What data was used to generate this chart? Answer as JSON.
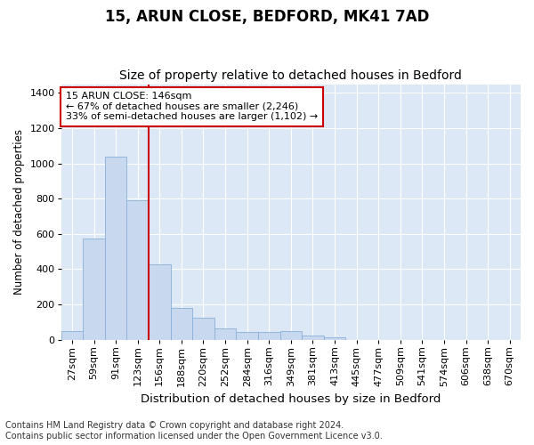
{
  "title1": "15, ARUN CLOSE, BEDFORD, MK41 7AD",
  "title2": "Size of property relative to detached houses in Bedford",
  "xlabel": "Distribution of detached houses by size in Bedford",
  "ylabel": "Number of detached properties",
  "categories": [
    "27sqm",
    "59sqm",
    "91sqm",
    "123sqm",
    "156sqm",
    "188sqm",
    "220sqm",
    "252sqm",
    "284sqm",
    "316sqm",
    "349sqm",
    "381sqm",
    "413sqm",
    "445sqm",
    "477sqm",
    "509sqm",
    "541sqm",
    "574sqm",
    "606sqm",
    "638sqm",
    "670sqm"
  ],
  "values": [
    50,
    575,
    1040,
    790,
    425,
    180,
    125,
    65,
    45,
    45,
    50,
    25,
    15,
    0,
    0,
    0,
    0,
    0,
    0,
    0,
    0
  ],
  "bar_color": "#c8d8ef",
  "bar_edge_color": "#8ab0d8",
  "red_line_index": 4,
  "annotation_text": "15 ARUN CLOSE: 146sqm\n← 67% of detached houses are smaller (2,246)\n33% of semi-detached houses are larger (1,102) →",
  "annotation_box_color": "#ffffff",
  "annotation_box_edge": "#cc0000",
  "footer1": "Contains HM Land Registry data © Crown copyright and database right 2024.",
  "footer2": "Contains public sector information licensed under the Open Government Licence v3.0.",
  "ylim": [
    0,
    1450
  ],
  "yticks": [
    0,
    200,
    400,
    600,
    800,
    1000,
    1200,
    1400
  ],
  "bg_color": "#dce8f5",
  "plot_bg_color": "#dce8f5",
  "grid_color": "#ffffff",
  "title1_fontsize": 12,
  "title2_fontsize": 10,
  "xlabel_fontsize": 9.5,
  "ylabel_fontsize": 8.5,
  "tick_fontsize": 8,
  "footer_fontsize": 7,
  "annot_fontsize": 8
}
